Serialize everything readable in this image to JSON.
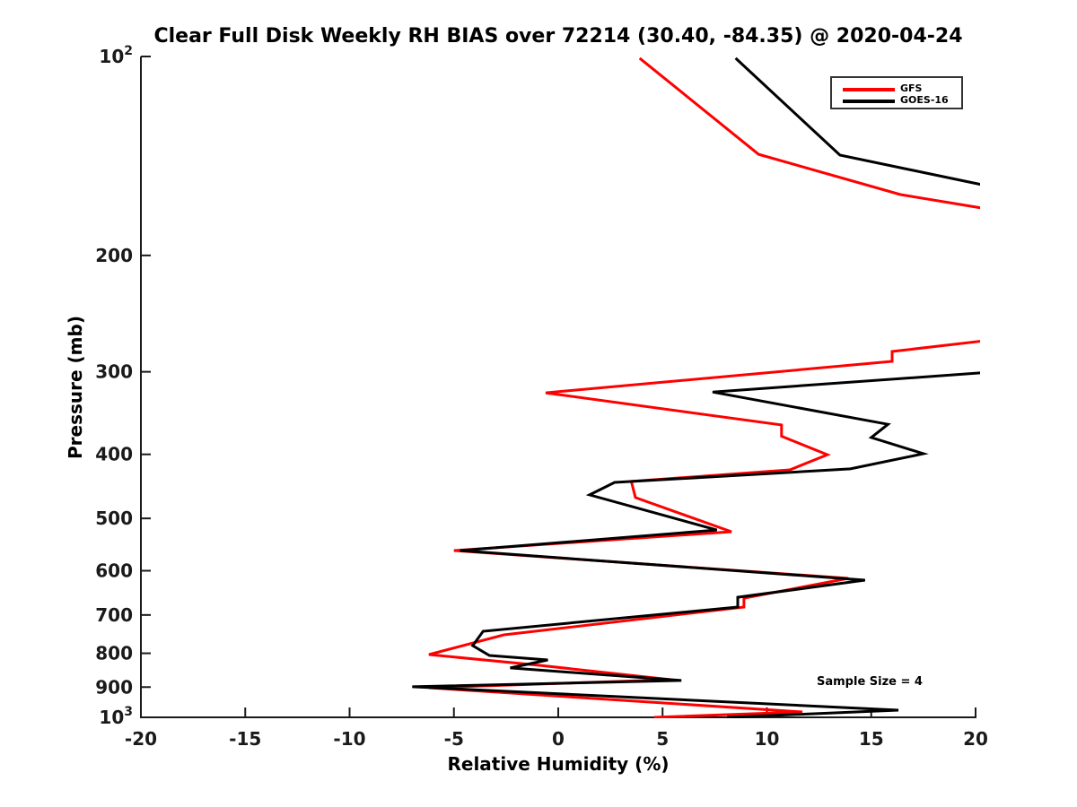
{
  "title": "Clear Full Disk Weekly RH BIAS over 72214 (30.40, -84.35) @ 2020-04-24",
  "annotation": "Sample Size = 4",
  "legend": {
    "entries": [
      {
        "label": "GFS",
        "color": "#ff0000"
      },
      {
        "label": "GOES-16",
        "color": "#000000"
      }
    ]
  },
  "colors": {
    "axis": "#1a1a1a",
    "text": "#000000",
    "background": "#ffffff",
    "gfs": "#ff0000",
    "goes16": "#000000"
  },
  "chart_data": {
    "type": "line",
    "title": "Clear Full Disk Weekly RH BIAS over 72214 (30.40, -84.35) @ 2020-04-24",
    "xlabel": "Relative Humidity (%)",
    "ylabel": "Pressure (mb)",
    "xlim": [
      -20,
      20
    ],
    "ylim": [
      100,
      1000
    ],
    "yscale": "log",
    "y_direction": "pressure increases downward",
    "grid": false,
    "legend_position": "top-right",
    "xticks": [
      -20,
      -15,
      -10,
      -5,
      0,
      5,
      10,
      15,
      20
    ],
    "yticks": [
      {
        "value": 100,
        "label": "10",
        "sup": "2"
      },
      {
        "value": 200,
        "label": "200"
      },
      {
        "value": 300,
        "label": "300"
      },
      {
        "value": 400,
        "label": "400"
      },
      {
        "value": 500,
        "label": "500"
      },
      {
        "value": 600,
        "label": "600"
      },
      {
        "value": 700,
        "label": "700"
      },
      {
        "value": 800,
        "label": "800"
      },
      {
        "value": 900,
        "label": "900"
      },
      {
        "value": 1000,
        "label": "10",
        "sup": "3"
      }
    ],
    "series": [
      {
        "name": "GFS",
        "color": "#ff0000",
        "points_format": "[relative_humidity_bias_percent, pressure_mb]",
        "segments": [
          [
            [
              3.9,
              100.6
            ],
            [
              9.6,
              140.6
            ],
            [
              16.4,
              161.8
            ],
            [
              21.0,
              171.0
            ]
          ],
          [
            [
              21.0,
              268.0
            ],
            [
              16.0,
              279.5
            ],
            [
              16.0,
              289.3
            ],
            [
              -0.6,
              322.8
            ],
            [
              10.7,
              361.0
            ],
            [
              10.7,
              375.5
            ],
            [
              12.9,
              400.5
            ],
            [
              11.1,
              422.2
            ],
            [
              3.5,
              439.6
            ],
            [
              3.7,
              465.0
            ],
            [
              8.3,
              523.8
            ],
            [
              -5.0,
              559.2
            ],
            [
              13.9,
              616.1
            ],
            [
              8.9,
              660.1
            ],
            [
              8.9,
              680.9
            ],
            [
              -2.6,
              750.2
            ],
            [
              -6.2,
              803.6
            ],
            [
              -0.9,
              834.3
            ],
            [
              5.4,
              876.9
            ],
            [
              -6.2,
              901.9
            ],
            [
              11.7,
              981.5
            ],
            [
              4.6,
              1000.0
            ]
          ]
        ]
      },
      {
        "name": "GOES-16",
        "color": "#000000",
        "points_format": "[relative_humidity_bias_percent, pressure_mb]",
        "segments": [
          [
            [
              8.5,
              100.6
            ],
            [
              13.5,
              141.0
            ],
            [
              21.0,
              158.0
            ]
          ],
          [
            [
              21.0,
              300.0
            ],
            [
              7.4,
              321.9
            ],
            [
              15.8,
              360.2
            ],
            [
              15.0,
              377.2
            ],
            [
              17.5,
              399.1
            ],
            [
              14.0,
              420.8
            ],
            [
              2.7,
              441.1
            ],
            [
              1.5,
              460.7
            ],
            [
              7.6,
              520.6
            ],
            [
              -4.7,
              559.2
            ],
            [
              14.7,
              620.0
            ],
            [
              8.6,
              658.1
            ],
            [
              8.6,
              680.9
            ],
            [
              -3.6,
              740.8
            ],
            [
              -4.1,
              778.8
            ],
            [
              -3.3,
              806.1
            ],
            [
              -0.5,
              818.8
            ],
            [
              -2.3,
              841.9
            ],
            [
              5.9,
              879.6
            ],
            [
              -7.0,
              899.0
            ],
            [
              16.3,
              975.2
            ],
            [
              8.1,
              1000.0
            ]
          ]
        ]
      }
    ],
    "annotations": [
      {
        "text": "Sample Size = 4"
      }
    ]
  }
}
